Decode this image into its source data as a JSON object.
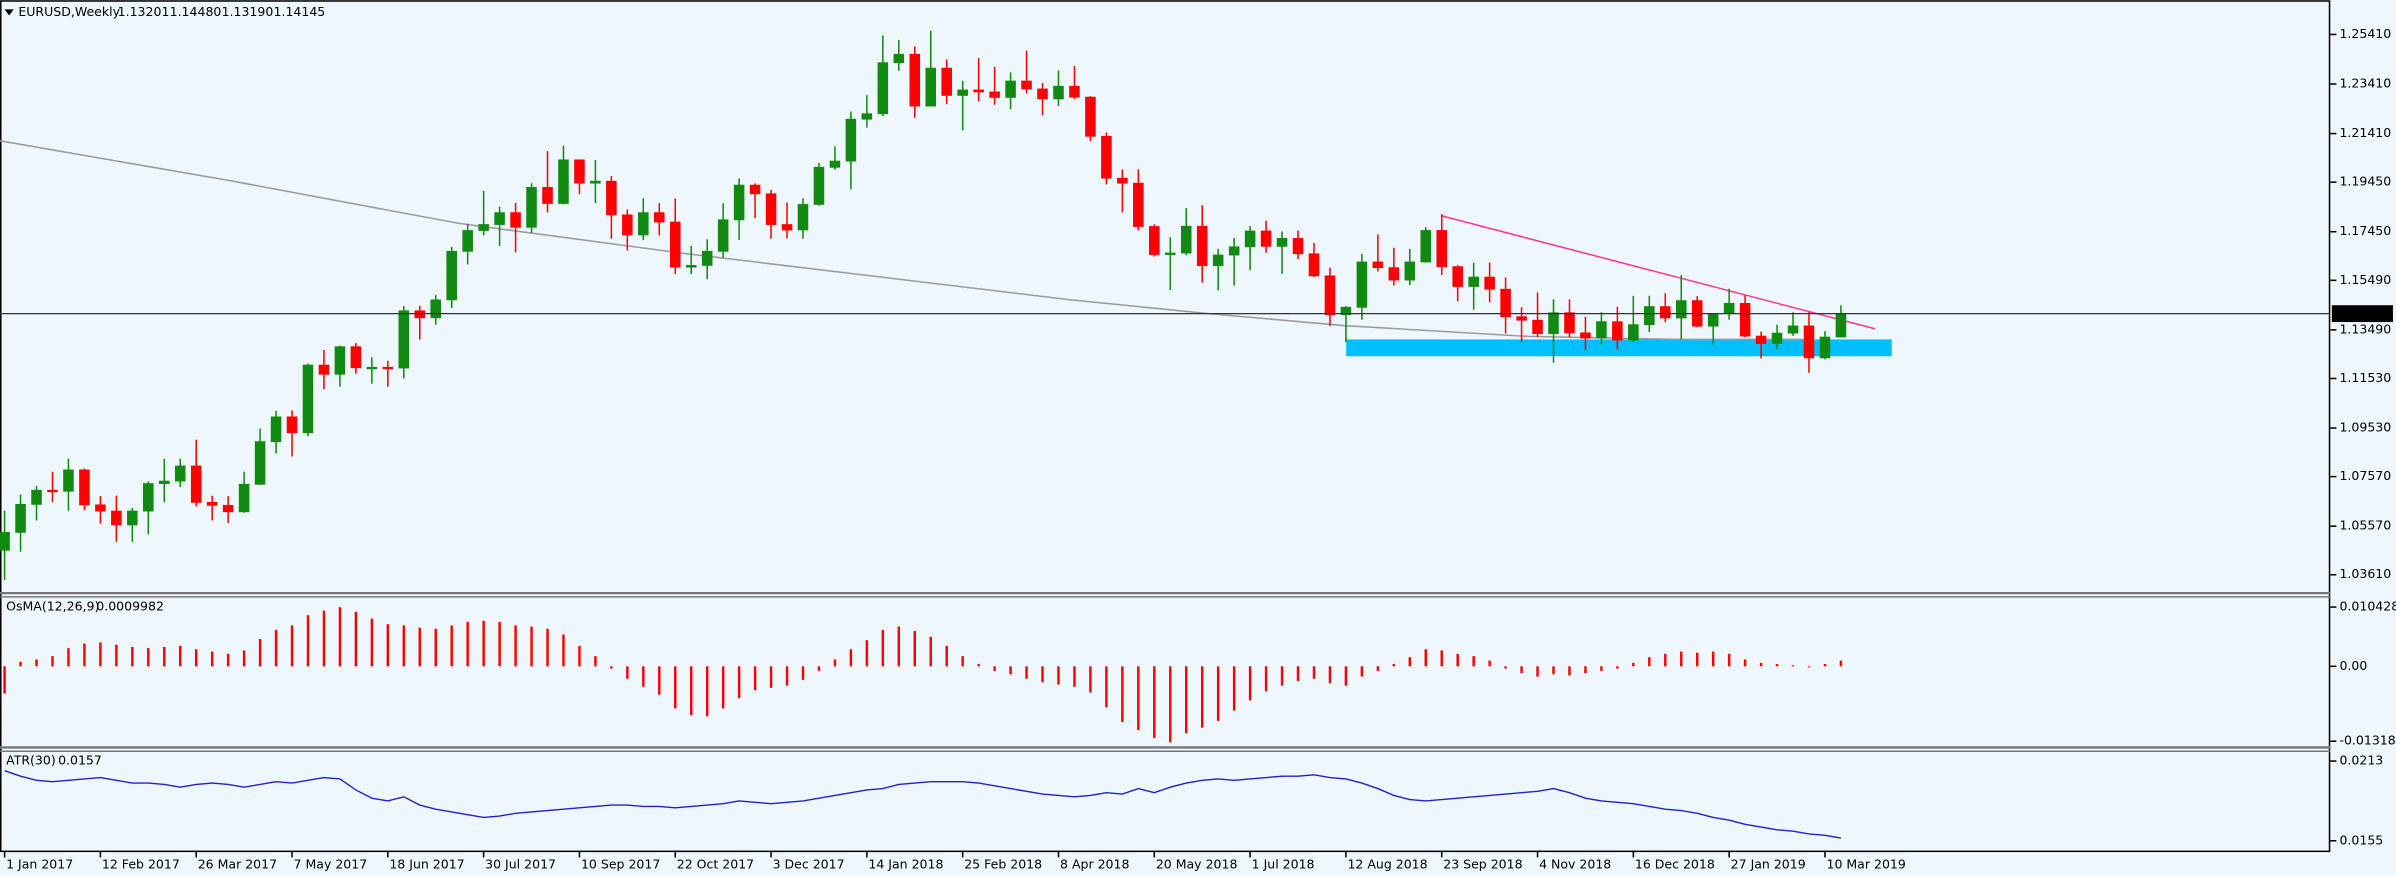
{
  "chart_data": [
    {
      "type": "candlestick",
      "symbol": "EURUSD,Weekly",
      "ohlc_labels": [
        "1.13201",
        "1.14480",
        "1.13190",
        "1.14145"
      ],
      "up_color": "#108a10",
      "down_color": "#ff0000",
      "categories": [
        "1 Jan 2017",
        null,
        null,
        null,
        null,
        null,
        "12 Feb 2017",
        null,
        null,
        null,
        null,
        null,
        "26 Mar 2017",
        null,
        null,
        null,
        null,
        null,
        "7 May 2017",
        null,
        null,
        null,
        null,
        null,
        "18 Jun 2017",
        null,
        null,
        null,
        null,
        null,
        "30 Jul 2017",
        null,
        null,
        null,
        null,
        null,
        "10 Sep 2017",
        null,
        null,
        null,
        null,
        null,
        "22 Oct 2017",
        null,
        null,
        null,
        null,
        null,
        "3 Dec 2017",
        null,
        null,
        null,
        null,
        null,
        "14 Jan 2018",
        null,
        null,
        null,
        null,
        null,
        "25 Feb 2018",
        null,
        null,
        null,
        null,
        null,
        "8 Apr 2018",
        null,
        null,
        null,
        null,
        null,
        "20 May 2018",
        null,
        null,
        null,
        null,
        null,
        "1 Jul 2018",
        null,
        null,
        null,
        null,
        null,
        "12 Aug 2018",
        null,
        null,
        null,
        null,
        null,
        "23 Sep 2018",
        null,
        null,
        null,
        null,
        null,
        "4 Nov 2018",
        null,
        null,
        null,
        null,
        null,
        "16 Dec 2018",
        null,
        null,
        null,
        null,
        null,
        "27 Jan 2019",
        null,
        null,
        null,
        null,
        null,
        "10 Mar 2019",
        null
      ],
      "open": [
        1.046,
        1.0532,
        1.0645,
        1.0702,
        1.0698,
        1.0784,
        1.0643,
        1.0618,
        1.0562,
        1.0618,
        1.0729,
        1.0739,
        1.08,
        1.0653,
        1.0641,
        1.0615,
        1.0726,
        1.0898,
        1.0998,
        1.0934,
        1.1207,
        1.117,
        1.1281,
        1.1196,
        1.1198,
        1.1195,
        1.1426,
        1.1398,
        1.147,
        1.1666,
        1.175,
        1.1774,
        1.1822,
        1.1763,
        1.1924,
        1.1859,
        1.2035,
        1.1941,
        1.1949,
        1.1813,
        1.1732,
        1.1822,
        1.1784,
        1.1602,
        1.1609,
        1.1666,
        1.1793,
        1.1933,
        1.1898,
        1.1774,
        1.1752,
        1.1855,
        1.2005,
        1.203,
        1.2199,
        1.2221,
        1.2427,
        1.2461,
        1.2252,
        1.2405,
        1.2295,
        1.2317,
        1.2309,
        1.2287,
        1.2353,
        1.2321,
        1.2281,
        1.2332,
        1.2288,
        1.213,
        1.1961,
        1.1941,
        1.1766,
        1.1653,
        1.1659,
        1.1767,
        1.1608,
        1.1651,
        1.1684,
        1.1748,
        1.1686,
        1.1718,
        1.1656,
        1.1567,
        1.141,
        1.144,
        1.1623,
        1.16,
        1.155,
        1.1623,
        1.175,
        1.1604,
        1.1524,
        1.1562,
        1.1513,
        1.1402,
        1.1388,
        1.1334,
        1.1418,
        1.1337,
        1.1316,
        1.1382,
        1.1308,
        1.137,
        1.1443,
        1.1397,
        1.1467,
        1.1364,
        1.1414,
        1.1456,
        1.1324,
        1.1294,
        1.1336,
        1.1365,
        1.1236,
        1.13201
      ],
      "high": [
        1.062,
        1.0685,
        1.0719,
        1.0776,
        1.0829,
        1.0789,
        1.0679,
        1.068,
        1.063,
        1.0738,
        1.0828,
        1.0829,
        1.0906,
        1.068,
        1.0678,
        1.0777,
        1.0951,
        1.1022,
        1.1024,
        1.1213,
        1.1268,
        1.1285,
        1.1296,
        1.1238,
        1.1224,
        1.1445,
        1.1446,
        1.1489,
        1.1684,
        1.1777,
        1.191,
        1.1846,
        1.1861,
        1.1941,
        1.207,
        1.2092,
        1.2035,
        1.2034,
        1.197,
        1.1835,
        1.188,
        1.186,
        1.1879,
        1.1688,
        1.1714,
        1.186,
        1.196,
        1.194,
        1.1914,
        1.1863,
        1.188,
        1.2023,
        1.2089,
        1.223,
        1.2296,
        1.2537,
        1.2519,
        1.2493,
        1.2556,
        1.244,
        1.2354,
        1.2446,
        1.241,
        1.2388,
        1.2476,
        1.2345,
        1.2396,
        1.2414,
        1.2292,
        1.2145,
        1.1996,
        1.1997,
        1.1775,
        1.1723,
        1.184,
        1.1852,
        1.1676,
        1.172,
        1.1768,
        1.179,
        1.1746,
        1.175,
        1.17,
        1.16,
        1.1445,
        1.1656,
        1.1734,
        1.168,
        1.1676,
        1.1763,
        1.1816,
        1.161,
        1.162,
        1.1621,
        1.156,
        1.144,
        1.15,
        1.1472,
        1.1472,
        1.1402,
        1.142,
        1.1442,
        1.1486,
        1.1487,
        1.1497,
        1.157,
        1.1485,
        1.1415,
        1.1515,
        1.1488,
        1.1342,
        1.137,
        1.142,
        1.142,
        1.1344,
        1.1448
      ],
      "low": [
        1.034,
        1.0454,
        1.058,
        1.0654,
        1.0619,
        1.0621,
        1.0567,
        1.0494,
        1.0494,
        1.0524,
        1.0654,
        1.0715,
        1.0637,
        1.058,
        1.057,
        1.0611,
        1.0723,
        1.085,
        1.0838,
        1.092,
        1.111,
        1.112,
        1.1172,
        1.1132,
        1.112,
        1.1153,
        1.131,
        1.137,
        1.1437,
        1.1613,
        1.173,
        1.1688,
        1.1662,
        1.1741,
        1.1823,
        1.1855,
        1.1896,
        1.1861,
        1.1717,
        1.1669,
        1.1711,
        1.173,
        1.1574,
        1.1574,
        1.1553,
        1.164,
        1.1712,
        1.18,
        1.1717,
        1.1718,
        1.1717,
        1.185,
        1.1995,
        1.1916,
        1.2165,
        1.2212,
        1.2394,
        1.2205,
        1.225,
        1.226,
        1.2154,
        1.227,
        1.2257,
        1.224,
        1.2303,
        1.2215,
        1.2252,
        1.228,
        1.211,
        1.1936,
        1.1823,
        1.175,
        1.1645,
        1.151,
        1.165,
        1.154,
        1.1508,
        1.1528,
        1.159,
        1.166,
        1.1575,
        1.1635,
        1.1562,
        1.1365,
        1.13,
        1.139,
        1.1585,
        1.1528,
        1.153,
        1.162,
        1.157,
        1.1464,
        1.143,
        1.146,
        1.1335,
        1.13,
        1.132,
        1.1216,
        1.132,
        1.1267,
        1.129,
        1.1269,
        1.1301,
        1.134,
        1.138,
        1.131,
        1.136,
        1.129,
        1.139,
        1.132,
        1.1234,
        1.127,
        1.1325,
        1.1176,
        1.123,
        1.1319
      ],
      "close": [
        1.0532,
        1.0645,
        1.0702,
        1.0698,
        1.0784,
        1.0643,
        1.0618,
        1.0562,
        1.0618,
        1.0729,
        1.0739,
        1.08,
        1.0653,
        1.0641,
        1.0615,
        1.0726,
        1.0898,
        1.0998,
        1.0934,
        1.1207,
        1.117,
        1.1281,
        1.1196,
        1.1198,
        1.1195,
        1.1426,
        1.1398,
        1.147,
        1.1666,
        1.175,
        1.1774,
        1.1822,
        1.1763,
        1.1924,
        1.1859,
        1.2035,
        1.1941,
        1.1949,
        1.1813,
        1.1732,
        1.1822,
        1.1784,
        1.1602,
        1.1609,
        1.1666,
        1.1793,
        1.1933,
        1.1898,
        1.1774,
        1.1752,
        1.1855,
        1.2005,
        1.203,
        1.2199,
        1.2221,
        1.2427,
        1.2461,
        1.2252,
        1.2405,
        1.2295,
        1.2317,
        1.2309,
        1.2287,
        1.2353,
        1.2321,
        1.2281,
        1.2332,
        1.2288,
        1.213,
        1.1961,
        1.1941,
        1.1766,
        1.1653,
        1.1659,
        1.1767,
        1.1608,
        1.1651,
        1.1684,
        1.1748,
        1.1686,
        1.1718,
        1.1656,
        1.1567,
        1.141,
        1.144,
        1.1623,
        1.16,
        1.155,
        1.1623,
        1.175,
        1.1604,
        1.1524,
        1.1562,
        1.1513,
        1.1402,
        1.1388,
        1.1334,
        1.1418,
        1.1337,
        1.1316,
        1.1382,
        1.1308,
        1.137,
        1.1443,
        1.1397,
        1.1467,
        1.1364,
        1.1414,
        1.1456,
        1.1324,
        1.1294,
        1.1336,
        1.1365,
        1.1236,
        1.13201,
        1.14145
      ],
      "ylim": [
        1.0287,
        1.2676
      ],
      "yticks": [
        {
          "value": 1.2541,
          "label": "1.25410"
        },
        {
          "value": 1.2341,
          "label": "1.23410"
        },
        {
          "value": 1.2141,
          "label": "1.21410"
        },
        {
          "value": 1.1945,
          "label": "1.19450"
        },
        {
          "value": 1.1745,
          "label": "1.17450"
        },
        {
          "value": 1.1549,
          "label": "1.15490"
        },
        {
          "value": 1.1349,
          "label": "1.13490"
        },
        {
          "value": 1.1153,
          "label": "1.11530"
        },
        {
          "value": 1.0953,
          "label": "1.09530"
        },
        {
          "value": 1.0757,
          "label": "1.07570"
        },
        {
          "value": 1.0557,
          "label": "1.05570"
        },
        {
          "value": 1.0361,
          "label": "1.03610"
        }
      ]
    },
    {
      "type": "bar",
      "name": "OsMA(12,26,9)",
      "color": "#ff0000",
      "values": [
        -0.0048,
        0.0008,
        0.0012,
        0.0018,
        0.0032,
        0.004,
        0.0042,
        0.0038,
        0.0034,
        0.0032,
        0.0034,
        0.0036,
        0.003,
        0.0026,
        0.0022,
        0.0028,
        0.0048,
        0.0064,
        0.0072,
        0.009,
        0.0098,
        0.0104,
        0.0096,
        0.0084,
        0.0074,
        0.0072,
        0.0068,
        0.0066,
        0.0072,
        0.0078,
        0.008,
        0.0078,
        0.0072,
        0.007,
        0.0066,
        0.0056,
        0.0036,
        0.0018,
        -0.0004,
        -0.0022,
        -0.0036,
        -0.005,
        -0.0074,
        -0.0086,
        -0.0088,
        -0.0074,
        -0.0056,
        -0.0042,
        -0.0038,
        -0.0034,
        -0.0024,
        -0.0008,
        0.0012,
        0.003,
        0.0046,
        0.0064,
        0.007,
        0.0062,
        0.0052,
        0.0036,
        0.0018,
        0.0004,
        -0.0008,
        -0.0014,
        -0.0022,
        -0.0028,
        -0.0032,
        -0.0036,
        -0.0046,
        -0.0072,
        -0.0098,
        -0.0112,
        -0.0126,
        -0.0134,
        -0.0118,
        -0.0108,
        -0.0096,
        -0.0078,
        -0.006,
        -0.0044,
        -0.0034,
        -0.0026,
        -0.0022,
        -0.003,
        -0.0034,
        -0.0018,
        -0.0008,
        0.0004,
        0.0016,
        0.003,
        0.0028,
        0.0022,
        0.0018,
        0.001,
        -0.0004,
        -0.0012,
        -0.0018,
        -0.0014,
        -0.0016,
        -0.0012,
        -0.0008,
        -0.0004,
        0.0006,
        0.0016,
        0.0022,
        0.0026,
        0.0024,
        0.0026,
        0.0022,
        0.0012,
        0.0006,
        0.0004,
        0.0002,
        -0.0002,
        0.0004,
        0.0009982
      ],
      "ylim": [
        -0.01428,
        0.01208
      ],
      "yticks": [
        0.0104286,
        {
          "value": 0,
          "label": "0.00"
        },
        -0.0131817
      ]
    },
    {
      "type": "line",
      "name": "ATR(30)",
      "color": "#2020d0",
      "values": [
        0.0206,
        0.0202,
        0.0199,
        0.0198,
        0.0199,
        0.02,
        0.0201,
        0.0199,
        0.0197,
        0.0197,
        0.0196,
        0.0194,
        0.0196,
        0.0197,
        0.0196,
        0.0194,
        0.0196,
        0.0198,
        0.0197,
        0.0199,
        0.0201,
        0.02,
        0.0192,
        0.0186,
        0.0184,
        0.0187,
        0.0181,
        0.0178,
        0.0176,
        0.0174,
        0.0172,
        0.0173,
        0.0175,
        0.0176,
        0.0177,
        0.0178,
        0.0179,
        0.018,
        0.0181,
        0.0181,
        0.018,
        0.018,
        0.0179,
        0.018,
        0.0181,
        0.0182,
        0.0184,
        0.0183,
        0.0182,
        0.0183,
        0.0184,
        0.0186,
        0.0188,
        0.019,
        0.0192,
        0.0193,
        0.0196,
        0.0197,
        0.0198,
        0.0198,
        0.0198,
        0.0197,
        0.0195,
        0.0193,
        0.0191,
        0.0189,
        0.0188,
        0.0187,
        0.0188,
        0.019,
        0.0189,
        0.0193,
        0.019,
        0.0194,
        0.0197,
        0.0199,
        0.02,
        0.0199,
        0.02,
        0.0201,
        0.0202,
        0.0202,
        0.0203,
        0.0201,
        0.02,
        0.0197,
        0.0193,
        0.0188,
        0.0185,
        0.0184,
        0.0185,
        0.0186,
        0.0187,
        0.0188,
        0.0189,
        0.019,
        0.0191,
        0.0193,
        0.019,
        0.0186,
        0.0184,
        0.0183,
        0.0182,
        0.018,
        0.0178,
        0.0177,
        0.0175,
        0.0172,
        0.017,
        0.0167,
        0.0165,
        0.0163,
        0.0162,
        0.016,
        0.0159,
        0.0157
      ],
      "ylim": [
        0.01473,
        0.02196
      ],
      "yticks": [
        0.0213,
        0.0155
      ]
    }
  ]
}
